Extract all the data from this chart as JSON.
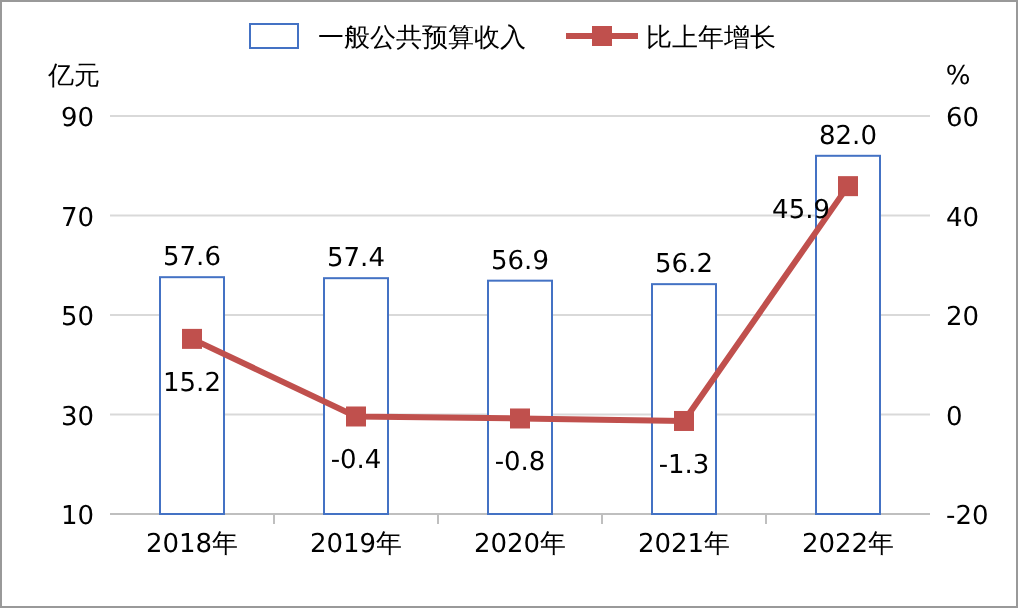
{
  "chart_data": {
    "type": "bar",
    "categories": [
      "2018年",
      "2019年",
      "2020年",
      "2021年",
      "2022年"
    ],
    "series": [
      {
        "name": "一般公共预算收入",
        "color": "#4472c4",
        "values": [
          57.6,
          57.4,
          56.9,
          56.2,
          82.0
        ],
        "value_labels": [
          "57.6",
          "57.4",
          "56.9",
          "56.2",
          "82.0"
        ]
      },
      {
        "name": "比上年增长",
        "type": "line",
        "axis": "y2",
        "marker": "square",
        "color": "#c0504d",
        "values": [
          15.2,
          -0.4,
          -0.8,
          -1.3,
          45.9
        ],
        "value_labels": [
          "15.2",
          "-0.4",
          "-0.8",
          "-1.3",
          "45.9"
        ]
      }
    ],
    "ylabel": "亿元",
    "y2label": "%",
    "ylim": [
      10,
      90
    ],
    "yticks": [
      10,
      30,
      50,
      70,
      90
    ],
    "y2lim": [
      -20,
      60
    ],
    "y2ticks": [
      -20,
      0,
      20,
      40,
      60
    ],
    "grid": "y",
    "legend": "top"
  }
}
